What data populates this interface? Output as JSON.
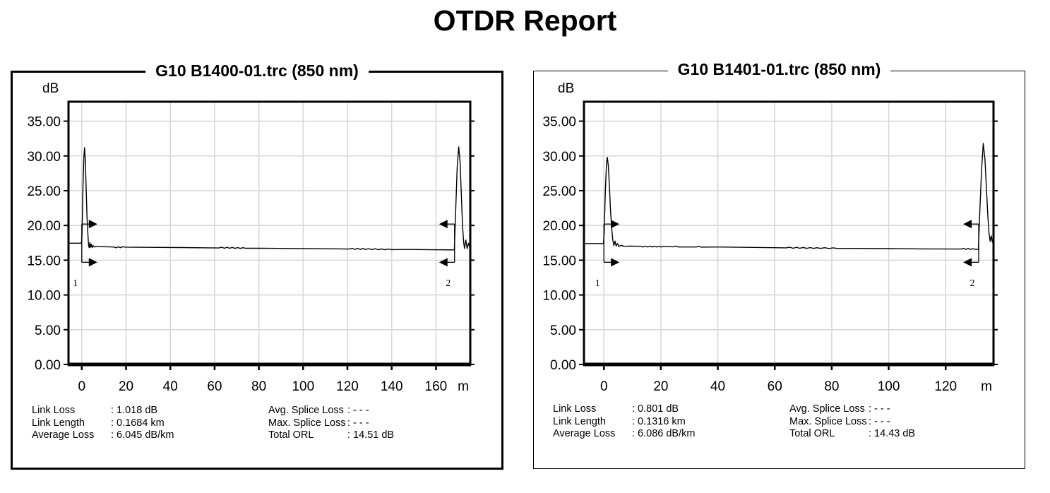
{
  "page": {
    "title": "OTDR Report"
  },
  "colors": {
    "background": "#ffffff",
    "foreground": "#000000",
    "gridline": "#d8d8d8"
  },
  "chart_data": [
    {
      "type": "line",
      "title": "G10 B1400-01.trc (850 nm)",
      "y_unit_label": "dB",
      "x_unit_label": "m",
      "grid": true,
      "ylim": [
        0,
        37.8
      ],
      "xlim": [
        -6,
        175.5
      ],
      "y_ticks": [
        {
          "v": 35,
          "label": "35.00"
        },
        {
          "v": 30,
          "label": "30.00"
        },
        {
          "v": 25,
          "label": "25.00"
        },
        {
          "v": 20,
          "label": "20.00"
        },
        {
          "v": 15,
          "label": "15.00"
        },
        {
          "v": 10,
          "label": "10.00"
        },
        {
          "v": 5,
          "label": "5.00"
        },
        {
          "v": 0,
          "label": "0.00"
        }
      ],
      "x_ticks": [
        0,
        20,
        40,
        60,
        80,
        100,
        120,
        140,
        160
      ],
      "trace": [
        [
          -6,
          17.45
        ],
        [
          -0.15,
          17.45
        ],
        [
          0.1,
          18.6
        ],
        [
          0.55,
          25.5
        ],
        [
          0.95,
          29.8
        ],
        [
          1.25,
          31.2
        ],
        [
          1.6,
          29.5
        ],
        [
          2.0,
          25.0
        ],
        [
          2.4,
          21.0
        ],
        [
          2.75,
          18.9
        ],
        [
          3.05,
          17.15
        ],
        [
          3.35,
          16.8
        ],
        [
          3.65,
          17.55
        ],
        [
          3.95,
          16.85
        ],
        [
          4.3,
          17.3
        ],
        [
          4.7,
          16.8
        ],
        [
          5.1,
          17.1
        ],
        [
          5.6,
          16.9
        ],
        [
          6.5,
          17.0
        ],
        [
          8,
          16.95
        ],
        [
          14.5,
          16.9
        ],
        [
          15.5,
          16.78
        ],
        [
          16.5,
          16.92
        ],
        [
          17.5,
          16.8
        ],
        [
          18.5,
          16.93
        ],
        [
          20,
          16.88
        ],
        [
          30,
          16.85
        ],
        [
          45,
          16.82
        ],
        [
          58,
          16.78
        ],
        [
          62,
          16.76
        ],
        [
          63.2,
          16.88
        ],
        [
          64.4,
          16.72
        ],
        [
          65.6,
          16.86
        ],
        [
          66.8,
          16.72
        ],
        [
          68,
          16.84
        ],
        [
          69.2,
          16.7
        ],
        [
          70.4,
          16.82
        ],
        [
          71.6,
          16.7
        ],
        [
          72.8,
          16.8
        ],
        [
          74,
          16.72
        ],
        [
          80,
          16.72
        ],
        [
          95,
          16.68
        ],
        [
          110,
          16.64
        ],
        [
          121,
          16.6
        ],
        [
          122.2,
          16.72
        ],
        [
          123.4,
          16.55
        ],
        [
          124.6,
          16.7
        ],
        [
          125.8,
          16.54
        ],
        [
          127,
          16.68
        ],
        [
          128.2,
          16.54
        ],
        [
          129.6,
          16.66
        ],
        [
          131,
          16.52
        ],
        [
          132.5,
          16.64
        ],
        [
          134,
          16.5
        ],
        [
          135.5,
          16.62
        ],
        [
          137,
          16.5
        ],
        [
          138.5,
          16.6
        ],
        [
          140,
          16.52
        ],
        [
          148,
          16.54
        ],
        [
          158,
          16.5
        ],
        [
          168.3,
          16.48
        ],
        [
          168.9,
          22
        ],
        [
          169.6,
          28.5
        ],
        [
          170.3,
          31.3
        ],
        [
          170.9,
          29
        ],
        [
          171.5,
          24
        ],
        [
          172.0,
          20.0
        ],
        [
          172.5,
          17.6
        ],
        [
          172.9,
          16.7
        ],
        [
          173.5,
          17.9
        ],
        [
          174.1,
          16.65
        ],
        [
          174.7,
          17.45
        ],
        [
          175.2,
          16.9
        ],
        [
          175.5,
          16.95
        ]
      ],
      "markers": [
        {
          "label": "1",
          "x": 0,
          "arrow_top_db": 20.2,
          "arrow_bottom_db": 14.7,
          "points": "right"
        },
        {
          "label": "2",
          "x": 168.4,
          "arrow_top_db": 20.2,
          "arrow_bottom_db": 14.7,
          "points": "left"
        }
      ],
      "stats": {
        "col1": [
          {
            "label": "Link Loss",
            "value": ": 1.018 dB"
          },
          {
            "label": "Link Length",
            "value": ": 0.1684 km"
          },
          {
            "label": "Average Loss",
            "value": ": 6.045 dB/km"
          }
        ],
        "col2": [
          {
            "label": "Avg. Splice Loss",
            "value": ": - - -"
          },
          {
            "label": "Max. Splice Loss",
            "value": ": - - -"
          },
          {
            "label": "Total ORL",
            "value": ": 14.51 dB"
          }
        ]
      }
    },
    {
      "type": "line",
      "title": "G10 B1401-01.trc (850 nm)",
      "y_unit_label": "dB",
      "x_unit_label": "m",
      "grid": true,
      "ylim": [
        0,
        37.8
      ],
      "xlim": [
        -7,
        136.8
      ],
      "y_ticks": [
        {
          "v": 35,
          "label": "35.00"
        },
        {
          "v": 30,
          "label": "30.00"
        },
        {
          "v": 25,
          "label": "25.00"
        },
        {
          "v": 20,
          "label": "20.00"
        },
        {
          "v": 15,
          "label": "15.00"
        },
        {
          "v": 10,
          "label": "10.00"
        },
        {
          "v": 5,
          "label": "5.00"
        },
        {
          "v": 0,
          "label": "0.00"
        }
      ],
      "x_ticks": [
        0,
        20,
        40,
        60,
        80,
        100,
        120
      ],
      "trace": [
        [
          -7,
          17.4
        ],
        [
          -0.15,
          17.4
        ],
        [
          0.1,
          18.8
        ],
        [
          0.5,
          25.0
        ],
        [
          0.9,
          28.9
        ],
        [
          1.2,
          29.8
        ],
        [
          1.55,
          28.6
        ],
        [
          1.95,
          25.5
        ],
        [
          2.35,
          22.0
        ],
        [
          2.75,
          19.6
        ],
        [
          3.1,
          18.0
        ],
        [
          3.5,
          17.1
        ],
        [
          3.9,
          17.75
        ],
        [
          4.3,
          17.05
        ],
        [
          4.8,
          17.4
        ],
        [
          5.3,
          16.95
        ],
        [
          6.0,
          17.15
        ],
        [
          7.0,
          17.0
        ],
        [
          9,
          17.02
        ],
        [
          13,
          17.0
        ],
        [
          13.8,
          16.9
        ],
        [
          14.6,
          17.02
        ],
        [
          15.4,
          16.9
        ],
        [
          16.2,
          17.0
        ],
        [
          17,
          16.9
        ],
        [
          17.8,
          17.0
        ],
        [
          18.6,
          16.9
        ],
        [
          19.4,
          16.99
        ],
        [
          20.2,
          16.9
        ],
        [
          21,
          16.98
        ],
        [
          24.5,
          16.93
        ],
        [
          25.3,
          17.03
        ],
        [
          26.1,
          16.9
        ],
        [
          32.5,
          16.9
        ],
        [
          33.3,
          17.0
        ],
        [
          34.1,
          16.88
        ],
        [
          40,
          16.9
        ],
        [
          50,
          16.85
        ],
        [
          60,
          16.8
        ],
        [
          64,
          16.78
        ],
        [
          65.2,
          16.88
        ],
        [
          66.4,
          16.72
        ],
        [
          67.6,
          16.85
        ],
        [
          68.8,
          16.72
        ],
        [
          70,
          16.84
        ],
        [
          71.2,
          16.7
        ],
        [
          72.4,
          16.82
        ],
        [
          73.6,
          16.7
        ],
        [
          74.8,
          16.8
        ],
        [
          76,
          16.7
        ],
        [
          77.5,
          16.8
        ],
        [
          79,
          16.68
        ],
        [
          80.5,
          16.78
        ],
        [
          82,
          16.68
        ],
        [
          88,
          16.7
        ],
        [
          100,
          16.66
        ],
        [
          112,
          16.62
        ],
        [
          125.5,
          16.6
        ],
        [
          126.3,
          16.7
        ],
        [
          127.1,
          16.55
        ],
        [
          127.9,
          16.68
        ],
        [
          128.7,
          16.55
        ],
        [
          129.5,
          16.65
        ],
        [
          130.3,
          16.56
        ],
        [
          131.5,
          16.55
        ],
        [
          132.0,
          22
        ],
        [
          132.6,
          28
        ],
        [
          133.2,
          31.8
        ],
        [
          133.8,
          29.5
        ],
        [
          134.3,
          25.5
        ],
        [
          134.8,
          21.5
        ],
        [
          135.2,
          19.0
        ],
        [
          135.6,
          17.7
        ],
        [
          136.0,
          18.5
        ],
        [
          136.4,
          17.6
        ],
        [
          136.8,
          18.0
        ]
      ],
      "markers": [
        {
          "label": "1",
          "x": 0,
          "arrow_top_db": 20.2,
          "arrow_bottom_db": 14.7,
          "points": "right"
        },
        {
          "label": "2",
          "x": 131.6,
          "arrow_top_db": 20.2,
          "arrow_bottom_db": 14.7,
          "points": "left"
        }
      ],
      "stats": {
        "col1": [
          {
            "label": "Link Loss",
            "value": ": 0.801 dB"
          },
          {
            "label": "Link Length",
            "value": ": 0.1316 km"
          },
          {
            "label": "Average Loss",
            "value": ": 6.086 dB/km"
          }
        ],
        "col2": [
          {
            "label": "Avg. Splice Loss",
            "value": ": - - -"
          },
          {
            "label": "Max. Splice Loss",
            "value": ": - - -"
          },
          {
            "label": "Total ORL",
            "value": ": 14.43 dB"
          }
        ]
      }
    }
  ]
}
